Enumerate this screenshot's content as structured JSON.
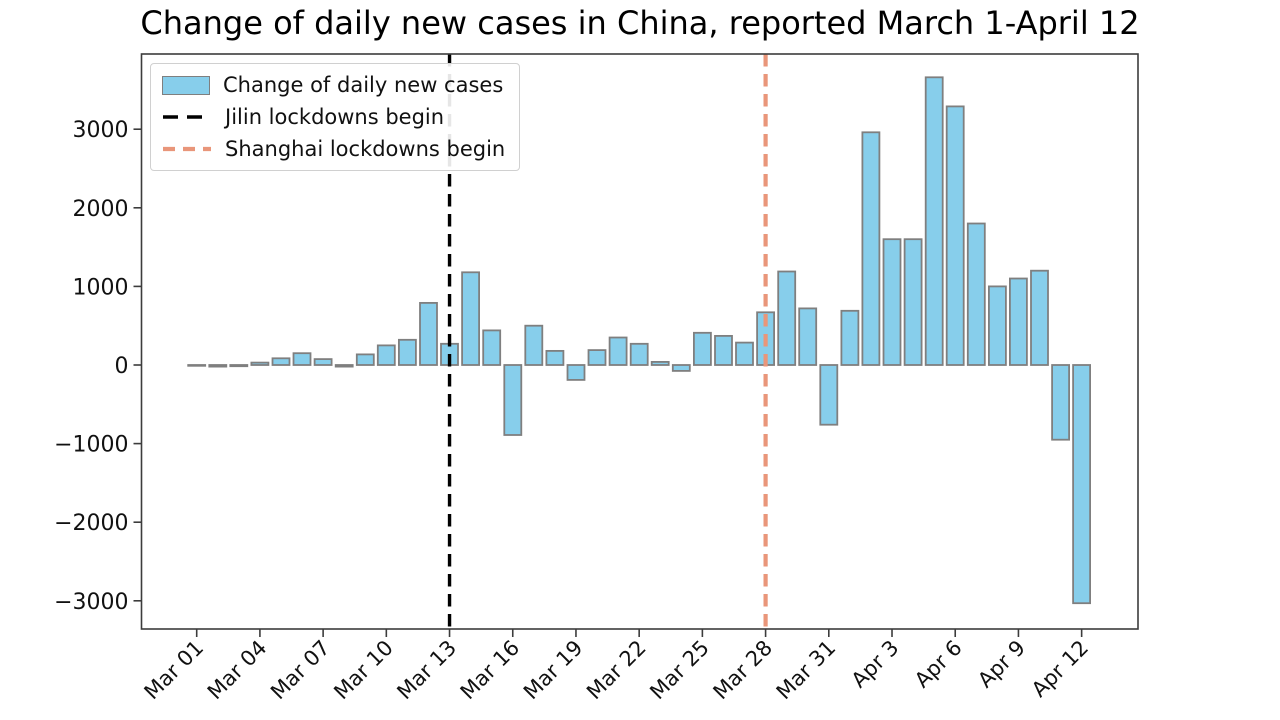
{
  "chart_data": {
    "type": "bar",
    "title": "Change of daily new cases in China, reported March 1-April 12",
    "series_label": "Change of daily new cases",
    "bar_color": "#87ceeb",
    "bar_edge_color": "#7f7f7f",
    "x": [
      "Mar 1",
      "Mar 2",
      "Mar 3",
      "Mar 4",
      "Mar 5",
      "Mar 6",
      "Mar 7",
      "Mar 8",
      "Mar 9",
      "Mar 10",
      "Mar 11",
      "Mar 12",
      "Mar 13",
      "Mar 14",
      "Mar 15",
      "Mar 16",
      "Mar 17",
      "Mar 18",
      "Mar 19",
      "Mar 20",
      "Mar 21",
      "Mar 22",
      "Mar 23",
      "Mar 24",
      "Mar 25",
      "Mar 26",
      "Mar 27",
      "Mar 28",
      "Mar 29",
      "Mar 30",
      "Mar 31",
      "Apr 1",
      "Apr 2",
      "Apr 3",
      "Apr 4",
      "Apr 5",
      "Apr 6",
      "Apr 7",
      "Apr 8",
      "Apr 9",
      "Apr 10",
      "Apr 11",
      "Apr 12"
    ],
    "values": [
      -10,
      -20,
      -15,
      30,
      85,
      150,
      75,
      -20,
      135,
      250,
      320,
      790,
      270,
      1180,
      440,
      -890,
      500,
      180,
      -190,
      190,
      350,
      270,
      40,
      -75,
      410,
      370,
      285,
      670,
      1190,
      720,
      -760,
      690,
      2960,
      1600,
      1600,
      3660,
      3290,
      1800,
      1000,
      1100,
      1200,
      -950,
      -3030
    ],
    "xtick_labels": [
      "Mar 01",
      "Mar 04",
      "Mar 07",
      "Mar 10",
      "Mar 13",
      "Mar 16",
      "Mar 19",
      "Mar 22",
      "Mar 25",
      "Mar 28",
      "Mar 31",
      "Apr 3",
      "Apr 6",
      "Apr 9",
      "Apr 12"
    ],
    "xtick_step_days": 3,
    "yticks": [
      3000,
      2000,
      1000,
      0,
      -1000,
      -2000,
      -3000
    ],
    "ylim": [
      -3360,
      3960
    ],
    "grid": false,
    "legend_position": "upper left",
    "vlines": [
      {
        "label": "Jilin lockdowns begin",
        "x": "Mar 13",
        "color": "#000000",
        "style": "dashed"
      },
      {
        "label": "Shanghai lockdowns begin",
        "x": "Mar 28",
        "color": "#e9967a",
        "style": "dashed"
      }
    ]
  }
}
